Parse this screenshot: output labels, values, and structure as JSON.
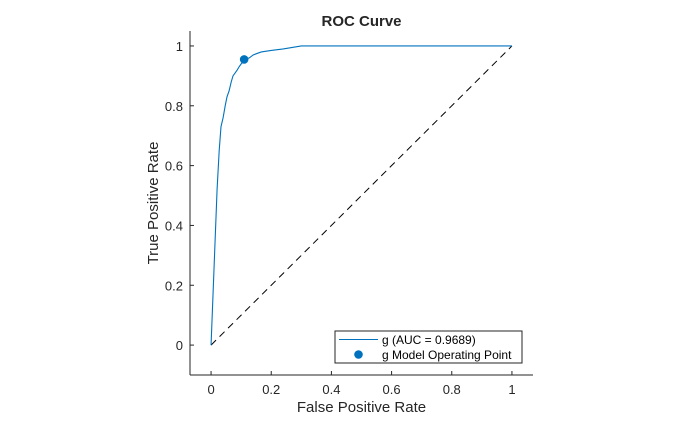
{
  "chart_data": {
    "type": "line",
    "title": "ROC Curve",
    "xlabel": "False Positive Rate",
    "ylabel": "True Positive Rate",
    "xlim": [
      -0.07,
      1.07
    ],
    "ylim": [
      -0.1,
      1.05
    ],
    "xticks": [
      0,
      0.2,
      0.4,
      0.6,
      0.8,
      1
    ],
    "yticks": [
      0,
      0.2,
      0.4,
      0.6,
      0.8,
      1
    ],
    "xtick_labels": [
      "0",
      "0.2",
      "0.4",
      "0.6",
      "0.8",
      "1"
    ],
    "ytick_labels": [
      "0",
      "0.2",
      "0.4",
      "0.6",
      "0.8",
      "1"
    ],
    "grid": false,
    "legend_position": "bottom-right",
    "series": [
      {
        "name": "g (AUC = 0.9689)",
        "color": "#0072BD",
        "x": [
          0,
          0.02,
          0.02,
          0.027,
          0.027,
          0.033,
          0.033,
          0.04,
          0.04,
          0.047,
          0.047,
          0.053,
          0.053,
          0.06,
          0.06,
          0.067,
          0.067,
          0.073,
          0.073,
          0.08,
          0.08,
          0.087,
          0.087,
          0.093,
          0.093,
          0.1,
          0.1,
          0.113,
          0.113,
          0.127,
          0.127,
          0.14,
          0.14,
          0.153,
          0.153,
          0.167,
          0.167,
          0.2,
          0.2,
          0.24,
          0.24,
          0.3,
          0.3,
          1
        ],
        "y": [
          0,
          0.52,
          0.52,
          0.65,
          0.65,
          0.73,
          0.73,
          0.76,
          0.76,
          0.8,
          0.8,
          0.83,
          0.83,
          0.85,
          0.85,
          0.88,
          0.88,
          0.9,
          0.9,
          0.91,
          0.91,
          0.92,
          0.92,
          0.93,
          0.93,
          0.94,
          0.94,
          0.955,
          0.955,
          0.96,
          0.96,
          0.97,
          0.97,
          0.975,
          0.975,
          0.98,
          0.98,
          0.985,
          0.985,
          0.99,
          0.99,
          1.0,
          1.0,
          1.0
        ]
      },
      {
        "name": "g Model Operating Point",
        "color": "#0072BD",
        "marker": "filled-circle",
        "x": [
          0.11
        ],
        "y": [
          0.955
        ]
      }
    ],
    "reference_line": {
      "style": "dashed",
      "color": "#000000",
      "x": [
        0,
        1
      ],
      "y": [
        0,
        1
      ]
    },
    "legend": [
      {
        "label": "g (AUC = 0.9689)",
        "symbol": "line"
      },
      {
        "label": "g Model Operating Point",
        "symbol": "filled-circle"
      }
    ]
  }
}
